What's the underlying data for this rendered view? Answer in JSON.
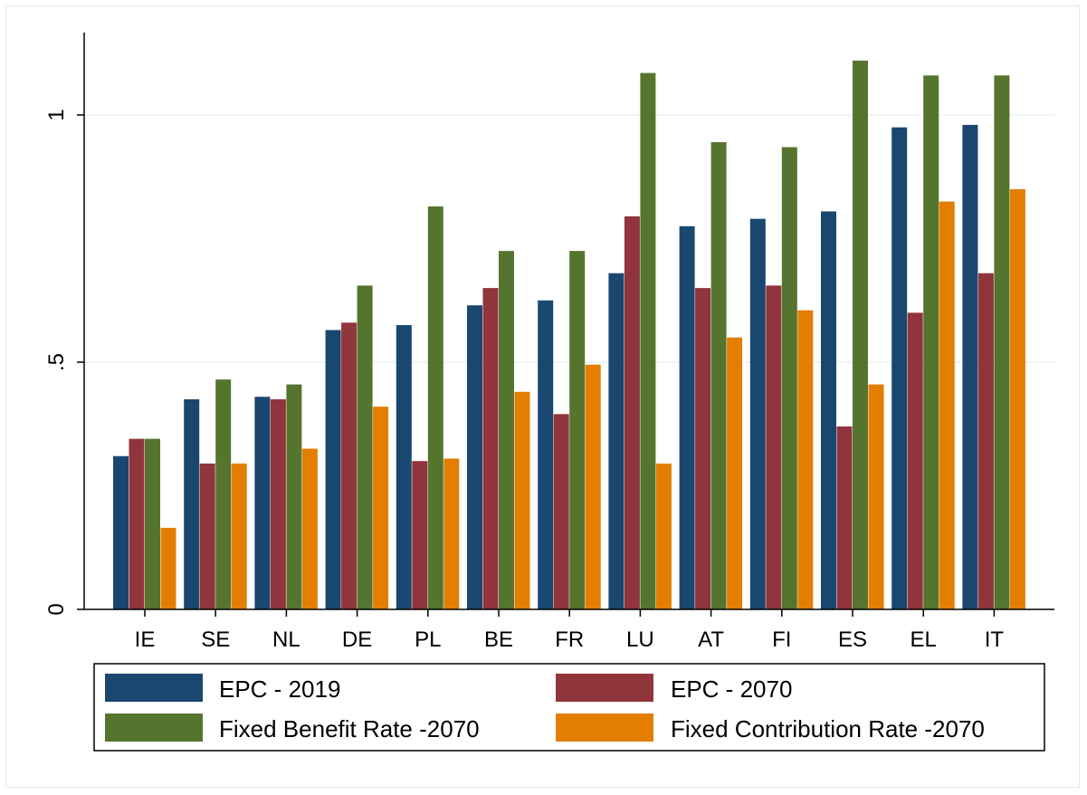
{
  "chart_data": {
    "type": "bar",
    "title": "",
    "xlabel": "",
    "ylabel": "",
    "categories": [
      "IE",
      "SE",
      "NL",
      "DE",
      "PL",
      "BE",
      "FR",
      "LU",
      "AT",
      "FI",
      "ES",
      "EL",
      "IT"
    ],
    "series": [
      {
        "name": "EPC - 2019",
        "color": "#1a476f",
        "values": [
          0.31,
          0.425,
          0.43,
          0.565,
          0.575,
          0.615,
          0.625,
          0.68,
          0.775,
          0.79,
          0.805,
          0.975,
          0.98
        ]
      },
      {
        "name": "EPC - 2070",
        "color": "#90353b",
        "values": [
          0.345,
          0.295,
          0.425,
          0.58,
          0.3,
          0.65,
          0.395,
          0.795,
          0.65,
          0.655,
          0.37,
          0.6,
          0.68
        ]
      },
      {
        "name": "Fixed Benefit Rate -2070",
        "color": "#55752f",
        "values": [
          0.345,
          0.465,
          0.455,
          0.655,
          0.815,
          0.725,
          0.725,
          1.085,
          0.945,
          0.935,
          1.11,
          1.08,
          1.08
        ]
      },
      {
        "name": "Fixed Contribution Rate -2070",
        "color": "#e37e00",
        "values": [
          0.165,
          0.295,
          0.325,
          0.41,
          0.305,
          0.44,
          0.495,
          0.295,
          0.55,
          0.605,
          0.455,
          0.825,
          0.85
        ]
      }
    ],
    "ylim": [
      0,
      1.15
    ],
    "yticks": [
      0,
      0.5,
      1
    ],
    "ytick_labels": [
      "0",
      ".5",
      "1"
    ],
    "grid": true,
    "legend_position": "bottom"
  }
}
